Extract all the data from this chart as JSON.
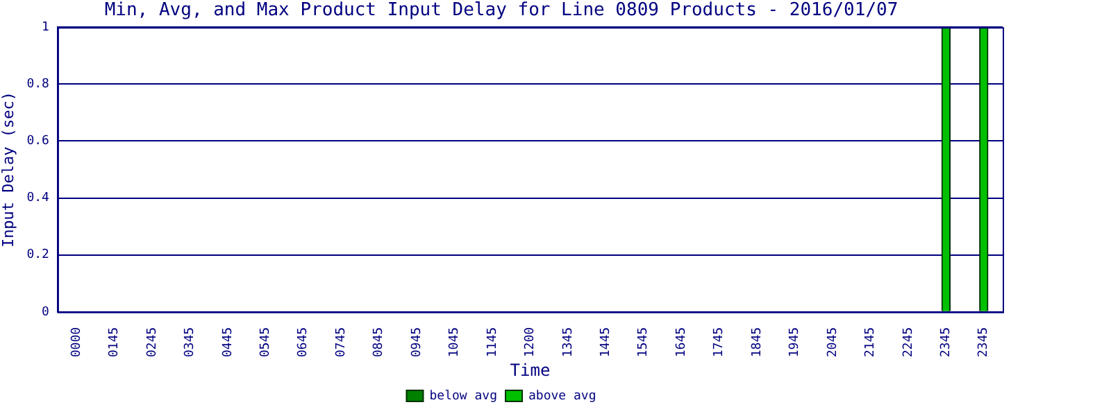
{
  "chart_data": {
    "type": "bar",
    "title": "Min, Avg, and Max Product Input Delay for Line 0809 Products - 2016/01/07",
    "xlabel": "Time",
    "ylabel": "Input Delay (sec)",
    "categories": [
      "0000",
      "0145",
      "0245",
      "0345",
      "0445",
      "0545",
      "0645",
      "0745",
      "0845",
      "0945",
      "1045",
      "1145",
      "1200",
      "1345",
      "1445",
      "1545",
      "1645",
      "1745",
      "1845",
      "1945",
      "2045",
      "2145",
      "2245",
      "2345",
      "2345"
    ],
    "series": [
      {
        "name": "below avg",
        "color": "#008000",
        "values": [
          null,
          null,
          null,
          null,
          null,
          null,
          null,
          null,
          null,
          null,
          null,
          null,
          null,
          null,
          null,
          null,
          null,
          null,
          null,
          null,
          null,
          null,
          null,
          null,
          null
        ]
      },
      {
        "name": "above avg",
        "color": "#00c000",
        "values": [
          null,
          null,
          null,
          null,
          null,
          null,
          null,
          null,
          null,
          null,
          null,
          null,
          null,
          null,
          null,
          null,
          null,
          null,
          null,
          null,
          null,
          null,
          null,
          1,
          1
        ]
      }
    ],
    "stacked": true,
    "ylim": [
      0,
      1
    ],
    "yticks": [
      0,
      0.2,
      0.4,
      0.6,
      0.8,
      1
    ],
    "grid": "y",
    "legend": "bottom"
  }
}
